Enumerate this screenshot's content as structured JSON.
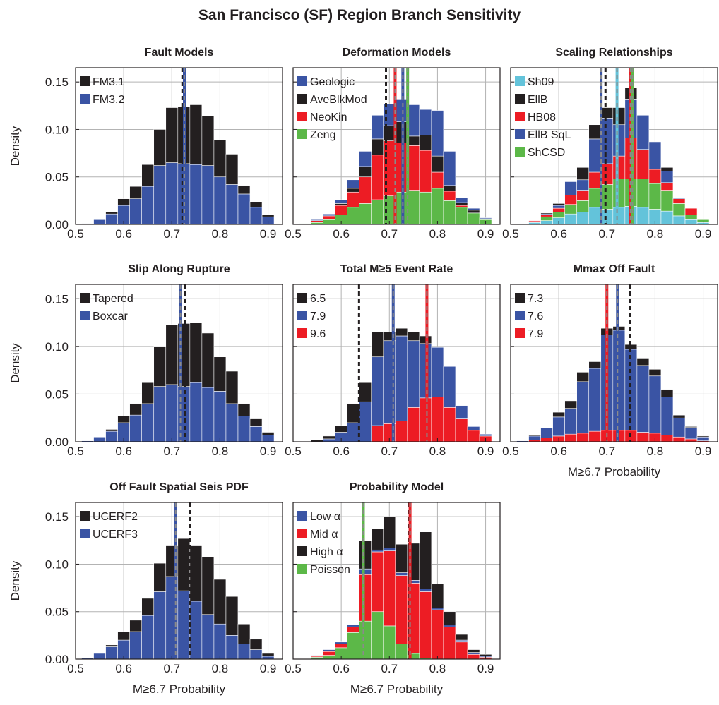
{
  "title": "San Francisco (SF) Region Branch Sensitivity",
  "ylabel": "Density",
  "xlabel": "M≥6.7 Probability",
  "xticks": [
    "0.5",
    "0.6",
    "0.7",
    "0.8",
    "0.9"
  ],
  "yticks": [
    "0.00",
    "0.05",
    "0.10",
    "0.15"
  ],
  "colors": {
    "black": "#231f20",
    "blue": "#3a54a4",
    "red": "#ed1c24",
    "green": "#5cb848",
    "cyan": "#63c3da",
    "grid": "#b3b3b3",
    "gray_line": "#8a8a8a"
  },
  "chart_data": [
    {
      "type": "bar",
      "stacked": true,
      "title": "Fault Models",
      "x_centers": [
        0.525,
        0.55,
        0.575,
        0.6,
        0.625,
        0.65,
        0.675,
        0.7,
        0.725,
        0.75,
        0.775,
        0.8,
        0.825,
        0.85,
        0.875,
        0.9
      ],
      "xlim": [
        0.5,
        0.93
      ],
      "ylim": [
        0,
        0.165
      ],
      "legend_position": "top-left",
      "series": [
        {
          "name": "FM3.2",
          "color": "blue",
          "values": [
            0.001,
            0.005,
            0.011,
            0.02,
            0.027,
            0.04,
            0.062,
            0.065,
            0.064,
            0.063,
            0.062,
            0.05,
            0.042,
            0.032,
            0.018,
            0.008
          ]
        },
        {
          "name": "FM3.1",
          "color": "black",
          "values": [
            0.0,
            0.0,
            0.002,
            0.007,
            0.013,
            0.023,
            0.038,
            0.058,
            0.06,
            0.063,
            0.052,
            0.039,
            0.032,
            0.009,
            0.006,
            0.002
          ]
        }
      ],
      "vlines": [
        {
          "x": 0.722,
          "style": "black-dash"
        },
        {
          "x": 0.726,
          "style": "blue-gray-dash"
        }
      ]
    },
    {
      "type": "bar",
      "stacked": true,
      "title": "Deformation Models",
      "x_centers": [
        0.525,
        0.55,
        0.575,
        0.6,
        0.625,
        0.65,
        0.675,
        0.7,
        0.725,
        0.75,
        0.775,
        0.8,
        0.825,
        0.85,
        0.875,
        0.9
      ],
      "xlim": [
        0.5,
        0.93
      ],
      "ylim": [
        0,
        0.165
      ],
      "legend_position": "top-left",
      "series": [
        {
          "name": "Zeng",
          "color": "green",
          "values": [
            0.001,
            0.002,
            0.005,
            0.01,
            0.018,
            0.022,
            0.026,
            0.03,
            0.034,
            0.036,
            0.034,
            0.038,
            0.025,
            0.018,
            0.012,
            0.005
          ]
        },
        {
          "name": "NeoKin",
          "color": "red",
          "values": [
            0.0,
            0.002,
            0.004,
            0.01,
            0.016,
            0.028,
            0.047,
            0.058,
            0.052,
            0.047,
            0.044,
            0.017,
            0.01,
            0.002,
            0.0,
            0.0
          ]
        },
        {
          "name": "AveBlkMod",
          "color": "black",
          "values": [
            0.0,
            0.0,
            0.0,
            0.002,
            0.004,
            0.011,
            0.017,
            0.016,
            0.022,
            0.01,
            0.016,
            0.017,
            0.006,
            0.003,
            0.003,
            0.001
          ]
        },
        {
          "name": "Geologic",
          "color": "blue",
          "values": [
            0.0,
            0.001,
            0.002,
            0.004,
            0.009,
            0.016,
            0.025,
            0.023,
            0.024,
            0.033,
            0.027,
            0.048,
            0.036,
            0.005,
            0.002,
            0.001
          ]
        }
      ],
      "vlines": [
        {
          "x": 0.693,
          "style": "black-dash"
        },
        {
          "x": 0.712,
          "style": "red-gray-dash"
        },
        {
          "x": 0.728,
          "style": "blue-gray-dash"
        },
        {
          "x": 0.738,
          "style": "green-gray-dash"
        }
      ]
    },
    {
      "type": "bar",
      "stacked": true,
      "title": "Scaling Relationships",
      "x_centers": [
        0.525,
        0.55,
        0.575,
        0.6,
        0.625,
        0.65,
        0.675,
        0.7,
        0.725,
        0.75,
        0.775,
        0.8,
        0.825,
        0.85,
        0.875,
        0.9
      ],
      "xlim": [
        0.5,
        0.93
      ],
      "ylim": [
        0,
        0.165
      ],
      "legend_position": "top-left",
      "series": [
        {
          "name": "Sh09",
          "color": "cyan",
          "values": [
            0.0,
            0.002,
            0.004,
            0.007,
            0.011,
            0.013,
            0.018,
            0.016,
            0.018,
            0.019,
            0.018,
            0.016,
            0.014,
            0.009,
            0.005,
            0.002
          ]
        },
        {
          "name": "ShCSD",
          "color": "green",
          "values": [
            0.0,
            0.001,
            0.004,
            0.006,
            0.01,
            0.012,
            0.02,
            0.026,
            0.03,
            0.029,
            0.03,
            0.027,
            0.022,
            0.013,
            0.005,
            0.003
          ]
        },
        {
          "name": "HB08",
          "color": "red",
          "values": [
            0.0,
            0.001,
            0.002,
            0.004,
            0.01,
            0.011,
            0.017,
            0.022,
            0.024,
            0.043,
            0.031,
            0.015,
            0.008,
            0.005,
            0.007,
            0.0
          ]
        },
        {
          "name": "EllB SqL",
          "color": "blue",
          "values": [
            0.0,
            0.0,
            0.001,
            0.003,
            0.014,
            0.011,
            0.035,
            0.048,
            0.033,
            0.041,
            0.036,
            0.029,
            0.012,
            0.001,
            0.0,
            0.0
          ]
        },
        {
          "name": "EllB",
          "color": "black",
          "values": [
            0.0,
            0.0,
            0.001,
            0.002,
            0.0,
            0.013,
            0.015,
            0.011,
            0.018,
            0.012,
            0.0,
            0.0,
            0.004,
            0.0,
            0.0,
            0.0
          ]
        }
      ],
      "vlines": [
        {
          "x": 0.688,
          "style": "blue-gray-dash"
        },
        {
          "x": 0.697,
          "style": "black-dash"
        },
        {
          "x": 0.721,
          "style": "cyan-gray-dash"
        },
        {
          "x": 0.749,
          "style": "red-gray-dash"
        },
        {
          "x": 0.753,
          "style": "green-gray-dash"
        }
      ]
    },
    {
      "type": "bar",
      "stacked": true,
      "title": "Slip Along Rupture",
      "x_centers": [
        0.525,
        0.55,
        0.575,
        0.6,
        0.625,
        0.65,
        0.675,
        0.7,
        0.725,
        0.75,
        0.775,
        0.8,
        0.825,
        0.85,
        0.875,
        0.9
      ],
      "xlim": [
        0.5,
        0.93
      ],
      "ylim": [
        0,
        0.165
      ],
      "legend_position": "top-left",
      "series": [
        {
          "name": "Boxcar",
          "color": "blue",
          "values": [
            0.001,
            0.005,
            0.011,
            0.02,
            0.028,
            0.04,
            0.058,
            0.06,
            0.058,
            0.062,
            0.057,
            0.053,
            0.04,
            0.027,
            0.016,
            0.007
          ]
        },
        {
          "name": "Tapered",
          "color": "black",
          "values": [
            0.0,
            0.0,
            0.002,
            0.007,
            0.012,
            0.022,
            0.042,
            0.063,
            0.066,
            0.063,
            0.057,
            0.036,
            0.034,
            0.013,
            0.008,
            0.003
          ]
        }
      ],
      "vlines": [
        {
          "x": 0.718,
          "style": "blue-gray-dash"
        },
        {
          "x": 0.728,
          "style": "black-dash"
        }
      ]
    },
    {
      "type": "bar",
      "stacked": true,
      "title": "Total M≥5 Event Rate",
      "x_centers": [
        0.525,
        0.55,
        0.575,
        0.6,
        0.625,
        0.65,
        0.675,
        0.7,
        0.725,
        0.75,
        0.775,
        0.8,
        0.825,
        0.85,
        0.875,
        0.9
      ],
      "xlim": [
        0.5,
        0.93
      ],
      "ylim": [
        0,
        0.165
      ],
      "legend_position": "top-left",
      "series": [
        {
          "name": "9.6",
          "color": "red",
          "values": [
            0.0,
            0.0,
            0.0,
            0.0,
            0.0,
            0.0,
            0.017,
            0.019,
            0.022,
            0.036,
            0.046,
            0.047,
            0.036,
            0.024,
            0.012,
            0.006
          ]
        },
        {
          "name": "7.9",
          "color": "blue",
          "values": [
            0.0,
            0.0,
            0.003,
            0.01,
            0.02,
            0.042,
            0.072,
            0.087,
            0.089,
            0.07,
            0.057,
            0.052,
            0.043,
            0.014,
            0.004,
            0.002
          ]
        },
        {
          "name": "6.5",
          "color": "black",
          "values": [
            0.0,
            0.002,
            0.003,
            0.007,
            0.02,
            0.02,
            0.026,
            0.009,
            0.008,
            0.009,
            0.008,
            0.0,
            0.0,
            0.0,
            0.0,
            0.0
          ]
        }
      ],
      "vlines": [
        {
          "x": 0.637,
          "style": "black-dash"
        },
        {
          "x": 0.708,
          "style": "blue-gray-dash"
        },
        {
          "x": 0.778,
          "style": "red-gray-dash"
        }
      ]
    },
    {
      "type": "bar",
      "stacked": true,
      "title": "Mmax Off Fault",
      "x_centers": [
        0.525,
        0.55,
        0.575,
        0.6,
        0.625,
        0.65,
        0.675,
        0.7,
        0.725,
        0.75,
        0.775,
        0.8,
        0.825,
        0.85,
        0.875,
        0.9
      ],
      "xlim": [
        0.5,
        0.93
      ],
      "ylim": [
        0,
        0.165
      ],
      "legend_position": "top-left",
      "series": [
        {
          "name": "7.9",
          "color": "red",
          "values": [
            0.0,
            0.002,
            0.004,
            0.006,
            0.008,
            0.009,
            0.011,
            0.012,
            0.012,
            0.012,
            0.01,
            0.009,
            0.007,
            0.005,
            0.003,
            0.001
          ]
        },
        {
          "name": "7.6",
          "color": "blue",
          "values": [
            0.001,
            0.004,
            0.011,
            0.02,
            0.027,
            0.054,
            0.066,
            0.1,
            0.105,
            0.085,
            0.07,
            0.06,
            0.04,
            0.02,
            0.012,
            0.004
          ]
        },
        {
          "name": "7.3",
          "color": "black",
          "values": [
            0.0,
            0.001,
            0.0,
            0.005,
            0.008,
            0.01,
            0.007,
            0.007,
            0.004,
            0.005,
            0.007,
            0.007,
            0.008,
            0.003,
            0.001,
            0.001
          ]
        }
      ],
      "vlines": [
        {
          "x": 0.7,
          "style": "red-gray-dash"
        },
        {
          "x": 0.722,
          "style": "blue-gray-dash"
        },
        {
          "x": 0.748,
          "style": "black-dash"
        }
      ]
    },
    {
      "type": "bar",
      "stacked": true,
      "title": "Off Fault Spatial Seis PDF",
      "x_centers": [
        0.525,
        0.55,
        0.575,
        0.6,
        0.625,
        0.65,
        0.675,
        0.7,
        0.725,
        0.75,
        0.775,
        0.8,
        0.825,
        0.85,
        0.875,
        0.9
      ],
      "xlim": [
        0.5,
        0.93
      ],
      "ylim": [
        0,
        0.165
      ],
      "legend_position": "top-left",
      "series": [
        {
          "name": "UCERF3",
          "color": "blue",
          "values": [
            0.001,
            0.006,
            0.013,
            0.02,
            0.029,
            0.046,
            0.071,
            0.087,
            0.072,
            0.061,
            0.047,
            0.037,
            0.025,
            0.016,
            0.01,
            0.003
          ]
        },
        {
          "name": "UCERF2",
          "color": "black",
          "values": [
            0.0,
            0.0,
            0.002,
            0.009,
            0.012,
            0.018,
            0.03,
            0.033,
            0.055,
            0.059,
            0.061,
            0.047,
            0.041,
            0.021,
            0.011,
            0.003
          ]
        }
      ],
      "vlines": [
        {
          "x": 0.708,
          "style": "blue-gray-dash"
        },
        {
          "x": 0.738,
          "style": "black-dash"
        }
      ]
    },
    {
      "type": "bar",
      "stacked": true,
      "title": "Probability Model",
      "x_centers": [
        0.525,
        0.55,
        0.575,
        0.6,
        0.625,
        0.65,
        0.675,
        0.7,
        0.725,
        0.75,
        0.775,
        0.8,
        0.825,
        0.85,
        0.875,
        0.9
      ],
      "xlim": [
        0.5,
        0.93
      ],
      "ylim": [
        0,
        0.165
      ],
      "legend_position": "top-left",
      "series": [
        {
          "name": "Poisson",
          "color": "green",
          "values": [
            0.0,
            0.002,
            0.004,
            0.012,
            0.028,
            0.04,
            0.05,
            0.035,
            0.016,
            0.006,
            0.001,
            0.0,
            0.0,
            0.0,
            0.0,
            0.0
          ]
        },
        {
          "name": "Mid α",
          "color": "red",
          "values": [
            0.0,
            0.001,
            0.004,
            0.004,
            0.006,
            0.049,
            0.063,
            0.079,
            0.072,
            0.074,
            0.07,
            0.052,
            0.034,
            0.018,
            0.005,
            0.002
          ]
        },
        {
          "name": "Low α",
          "color": "blue",
          "values": [
            0.0,
            0.001,
            0.002,
            0.002,
            0.002,
            0.006,
            0.002,
            0.003,
            0.003,
            0.003,
            0.003,
            0.002,
            0.002,
            0.002,
            0.002,
            0.001
          ]
        },
        {
          "name": "High α",
          "color": "black",
          "values": [
            0.0,
            0.0,
            0.0,
            0.0,
            0.0,
            0.03,
            0.022,
            0.033,
            0.03,
            0.039,
            0.06,
            0.025,
            0.014,
            0.006,
            0.003,
            0.002
          ]
        }
      ],
      "vlines": [
        {
          "x": 0.646,
          "style": "green-gray-dash"
        },
        {
          "x": 0.74,
          "style": "black-dash"
        },
        {
          "x": 0.743,
          "style": "red-gray-dash"
        }
      ]
    }
  ]
}
